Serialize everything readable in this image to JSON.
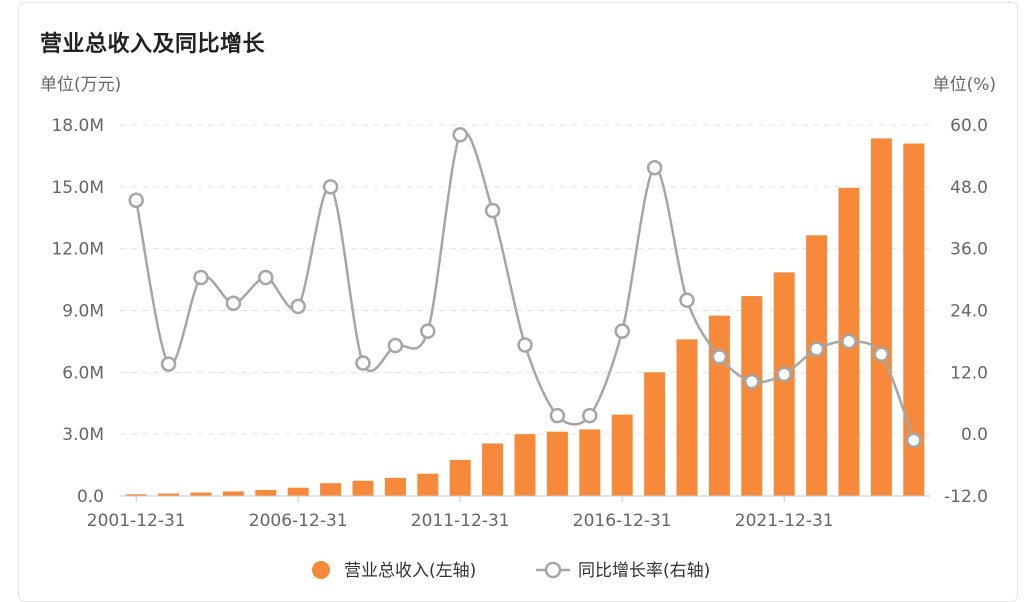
{
  "card": {
    "title": "营业总收入及同比增长"
  },
  "chart_data": {
    "type": "bar+line",
    "title": "营业总收入及同比增长",
    "y_left_unit": "单位(万元)",
    "y_right_unit": "单位(%)",
    "y_left_ticks": [
      "0.0",
      "3.0M",
      "6.0M",
      "9.0M",
      "12.0M",
      "15.0M",
      "18.0M"
    ],
    "y_right_ticks": [
      "-12.0",
      "0.0",
      "12.0",
      "24.0",
      "36.0",
      "48.0",
      "60.0"
    ],
    "ylim_left": [
      0,
      18000000
    ],
    "ylim_right": [
      -12,
      60
    ],
    "x_tick_labels": [
      "2001-12-31",
      "2006-12-31",
      "2011-12-31",
      "2016-12-31",
      "2021-12-31"
    ],
    "categories": [
      "2001-12-31",
      "2002-12-31",
      "2003-12-31",
      "2004-12-31",
      "2005-12-31",
      "2006-12-31",
      "2007-12-31",
      "2008-12-31",
      "2009-12-31",
      "2010-12-31",
      "2011-12-31",
      "2012-12-31",
      "2013-12-31",
      "2014-12-31",
      "2015-12-31",
      "2016-12-31",
      "2017-12-31",
      "2018-12-31",
      "2019-12-31",
      "2020-12-31",
      "2021-12-31",
      "2022-12-31",
      "2023-12-31",
      "2024-12-31",
      "2025-12-31"
    ],
    "grid": true,
    "legend_position": "bottom",
    "series": [
      {
        "name": "营业总收入(左轴)",
        "type": "bar",
        "axis": "left",
        "color": "#f7893a",
        "values": [
          80000,
          120000,
          170000,
          220000,
          290000,
          400000,
          620000,
          740000,
          880000,
          1080000,
          1750000,
          2550000,
          3000000,
          3120000,
          3230000,
          3950000,
          6000000,
          7600000,
          8750000,
          9700000,
          10850000,
          12650000,
          14950000,
          17350000,
          17100000
        ]
      },
      {
        "name": "同比增长率(右轴)",
        "type": "line",
        "axis": "right",
        "color": "#a6a6a6",
        "values": [
          45.4,
          13.6,
          30.4,
          25.4,
          30.4,
          24.8,
          48.0,
          13.8,
          17.2,
          20.0,
          58.1,
          43.4,
          17.3,
          3.6,
          3.6,
          20.0,
          51.7,
          26.0,
          15.0,
          10.2,
          11.6,
          16.5,
          18.0,
          15.5,
          -1.2
        ]
      }
    ]
  }
}
